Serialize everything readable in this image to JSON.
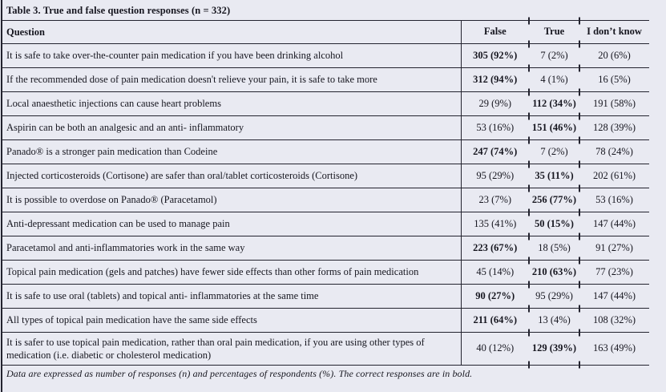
{
  "title": "Table 3. True and false question responses (n = 332)",
  "columns": {
    "question": "Question",
    "false_label": "False",
    "true_label": "True",
    "dont_know_label": "I don’t know"
  },
  "rows": [
    {
      "question": "It is safe to take over-the-counter pain medication if you have been drinking alcohol",
      "n_false": "305 (92%)",
      "n_true": "7 (2%)",
      "n_dont_know": "20 (6%)",
      "correct": "false"
    },
    {
      "question": "If the recommended dose of pain medication doesn't relieve your pain, it is safe to take more",
      "n_false": "312 (94%)",
      "n_true": "4 (1%)",
      "n_dont_know": "16 (5%)",
      "correct": "false"
    },
    {
      "question": "Local anaesthetic injections can cause heart problems",
      "n_false": "29 (9%)",
      "n_true": "112 (34%)",
      "n_dont_know": "191 (58%)",
      "correct": "true"
    },
    {
      "question": "Aspirin can be both an analgesic and an anti- inflammatory",
      "n_false": "53 (16%)",
      "n_true": "151 (46%)",
      "n_dont_know": "128 (39%)",
      "correct": "true"
    },
    {
      "question": "Panado® is a stronger pain medication than Codeine",
      "n_false": "247 (74%)",
      "n_true": "7 (2%)",
      "n_dont_know": "78 (24%)",
      "correct": "false"
    },
    {
      "question": "Injected corticosteroids (Cortisone) are safer than oral/tablet corticosteroids (Cortisone)",
      "n_false": "95 (29%)",
      "n_true": "35 (11%)",
      "n_dont_know": "202 (61%)",
      "correct": "true"
    },
    {
      "question": "It is possible to overdose on Panado® (Paracetamol)",
      "n_false": "23 (7%)",
      "n_true": "256 (77%)",
      "n_dont_know": "53 (16%)",
      "correct": "true"
    },
    {
      "question": "Anti-depressant medication can be used to manage pain",
      "n_false": "135 (41%)",
      "n_true": "50 (15%)",
      "n_dont_know": "147 (44%)",
      "correct": "true"
    },
    {
      "question": "Paracetamol and anti-inflammatories work in the same way",
      "n_false": "223 (67%)",
      "n_true": "18 (5%)",
      "n_dont_know": "91 (27%)",
      "correct": "false"
    },
    {
      "question": "Topical pain medication (gels and patches) have fewer side effects than other forms of pain medication",
      "n_false": "45 (14%)",
      "n_true": "210 (63%)",
      "n_dont_know": "77 (23%)",
      "correct": "true"
    },
    {
      "question": "It is safe to use oral (tablets) and topical anti- inflammatories at the same time",
      "n_false": "90 (27%)",
      "n_true": "95 (29%)",
      "n_dont_know": "147 (44%)",
      "correct": "false"
    },
    {
      "question": "All types of topical pain medication have the same side effects",
      "n_false": "211 (64%)",
      "n_true": "13 (4%)",
      "n_dont_know": "108 (32%)",
      "correct": "false"
    },
    {
      "question": "It is safer to use topical pain medication, rather than oral pain medication, if you are using other types of medication (i.e. diabetic or cholesterol medication)",
      "n_false": "40 (12%)",
      "n_true": "129 (39%)",
      "n_dont_know": "163 (49%)",
      "correct": "true"
    }
  ],
  "footnote": "Data are expressed as number of responses (n) and percentages of respondents (%). The correct responses are in bold.",
  "colors": {
    "background": "#e9eaf2",
    "line": "#23232f",
    "text": "#16161f"
  }
}
